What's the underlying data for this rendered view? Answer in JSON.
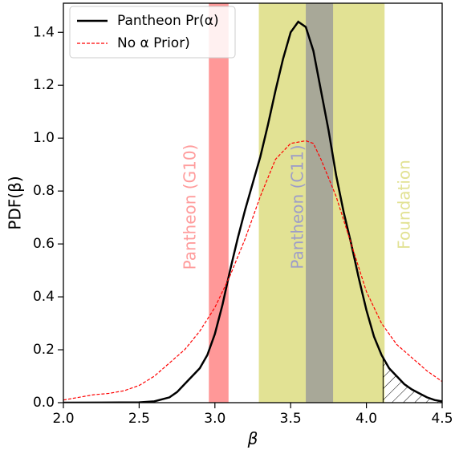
{
  "chart_data": {
    "type": "line",
    "x_label": "β",
    "y_label": "PDF(β)",
    "xlim": [
      2.0,
      4.5
    ],
    "ylim": [
      0,
      1.51
    ],
    "xticks": [
      {
        "value": 2,
        "label": "2.0"
      },
      {
        "value": 2.5,
        "label": "2.5"
      },
      {
        "value": 3,
        "label": "3.0"
      },
      {
        "value": 3.5,
        "label": "3.5"
      },
      {
        "value": 4,
        "label": "4.0"
      },
      {
        "value": 4.5,
        "label": "4.5"
      }
    ],
    "yticks": [
      {
        "value": 0,
        "label": "0.0"
      },
      {
        "value": 0.2,
        "label": "0.2"
      },
      {
        "value": 0.4,
        "label": "0.4"
      },
      {
        "value": 0.6,
        "label": "0.6"
      },
      {
        "value": 0.8,
        "label": "0.8"
      },
      {
        "value": 1,
        "label": "1.0"
      },
      {
        "value": 1.2,
        "label": "1.2"
      },
      {
        "value": 1.4,
        "label": "1.4"
      }
    ],
    "legend": "upper left",
    "bands": [
      {
        "label": "Pantheon (G10)",
        "range": [
          2.96,
          3.09
        ],
        "color": "#ff9898",
        "text_color": "#ff9d9d"
      },
      {
        "label": "Foundation",
        "range": [
          3.29,
          4.12
        ],
        "color": "#e2e294",
        "text_color": "#e2e294"
      },
      {
        "label": "Pantheon (C11)",
        "range": [
          3.6,
          3.78
        ],
        "color": "#a8a898",
        "text_color": "#9d9dc8"
      }
    ],
    "hatch_from": 4.11,
    "series": [
      {
        "name": "Pantheon Pr(α)",
        "color": "#000000",
        "style": "solid",
        "x": [
          2.0,
          2.5,
          2.6,
          2.7,
          2.75,
          2.8,
          2.85,
          2.9,
          2.95,
          3.0,
          3.05,
          3.1,
          3.15,
          3.2,
          3.25,
          3.3,
          3.35,
          3.4,
          3.45,
          3.5,
          3.55,
          3.6,
          3.65,
          3.7,
          3.75,
          3.8,
          3.85,
          3.9,
          3.95,
          4.0,
          4.05,
          4.1,
          4.15,
          4.2,
          4.25,
          4.3,
          4.35,
          4.4,
          4.45,
          4.5
        ],
        "values": [
          0,
          0.001,
          0.005,
          0.02,
          0.04,
          0.07,
          0.1,
          0.13,
          0.18,
          0.26,
          0.37,
          0.5,
          0.62,
          0.73,
          0.83,
          0.93,
          1.05,
          1.18,
          1.3,
          1.4,
          1.44,
          1.42,
          1.33,
          1.18,
          1.03,
          0.86,
          0.72,
          0.6,
          0.47,
          0.35,
          0.25,
          0.18,
          0.13,
          0.1,
          0.07,
          0.05,
          0.035,
          0.02,
          0.01,
          0.005
        ]
      },
      {
        "name": "No α Prior)",
        "color": "#ff0000",
        "style": "dashed",
        "x": [
          2.0,
          2.1,
          2.2,
          2.3,
          2.4,
          2.5,
          2.6,
          2.7,
          2.8,
          2.9,
          3.0,
          3.1,
          3.2,
          3.3,
          3.4,
          3.5,
          3.6,
          3.65,
          3.7,
          3.8,
          3.9,
          4.0,
          4.1,
          4.2,
          4.3,
          4.4,
          4.5
        ],
        "values": [
          0.01,
          0.02,
          0.03,
          0.035,
          0.045,
          0.065,
          0.1,
          0.15,
          0.2,
          0.27,
          0.36,
          0.48,
          0.62,
          0.78,
          0.92,
          0.98,
          0.99,
          0.98,
          0.92,
          0.78,
          0.6,
          0.42,
          0.3,
          0.22,
          0.17,
          0.12,
          0.08
        ]
      }
    ]
  }
}
